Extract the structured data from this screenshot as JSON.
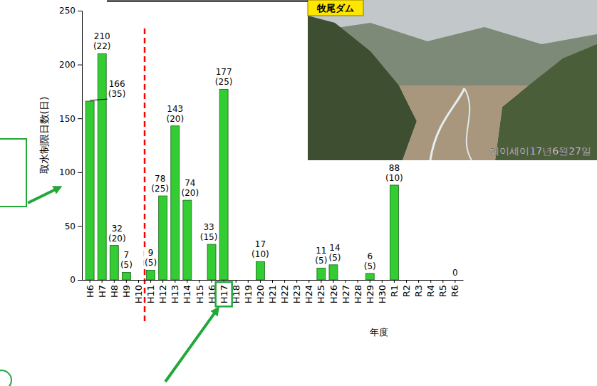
{
  "chart_data": {
    "type": "bar",
    "y_label": "取水制限日数(日)",
    "x_label": "年度",
    "categories": [
      "H6",
      "H7",
      "H8",
      "H9",
      "H10",
      "H11",
      "H12",
      "H13",
      "H14",
      "H15",
      "H16",
      "H17",
      "H18",
      "H19",
      "H20",
      "H21",
      "H22",
      "H23",
      "H24",
      "H25",
      "H26",
      "H27",
      "H28",
      "H29",
      "H30",
      "R1",
      "R2",
      "R3",
      "R4",
      "R5",
      "R6"
    ],
    "values": [
      166,
      210,
      32,
      7,
      0,
      9,
      78,
      143,
      74,
      0,
      33,
      177,
      0,
      0,
      17,
      0,
      0,
      0,
      0,
      11,
      14,
      0,
      0,
      6,
      0,
      88,
      0,
      0,
      0,
      0,
      0
    ],
    "value_labels": [
      "166",
      "210",
      "32",
      "7",
      null,
      "9",
      "78",
      "143",
      "74",
      null,
      "33",
      "177",
      null,
      null,
      "17",
      null,
      null,
      null,
      null,
      "11",
      "14",
      null,
      null,
      "6",
      null,
      "88",
      null,
      null,
      null,
      null,
      "0"
    ],
    "rate_labels": [
      "(35)",
      "(22)",
      "(20)",
      "(5)",
      null,
      "(5)",
      "(25)",
      "(20)",
      "(20)",
      null,
      "(15)",
      "(25)",
      null,
      null,
      "(10)",
      null,
      null,
      null,
      null,
      "(5)",
      "(5)",
      null,
      null,
      "(5)",
      null,
      "(10)",
      null,
      null,
      null,
      null,
      null
    ],
    "color": "#33cc33",
    "ylim": [
      0,
      250
    ],
    "yticks": [
      0,
      50,
      100,
      150,
      200,
      250
    ],
    "grid": false,
    "data_labels": true,
    "annotations": [
      {
        "type": "vline",
        "after": "H10",
        "color": "#ff0000",
        "line_style": "dashed"
      },
      {
        "type": "box",
        "category": "H17",
        "color": "#22a83a"
      }
    ],
    "photo": {
      "title": "牧尾ダム",
      "caption": "헤이세이17년6월27일"
    }
  }
}
